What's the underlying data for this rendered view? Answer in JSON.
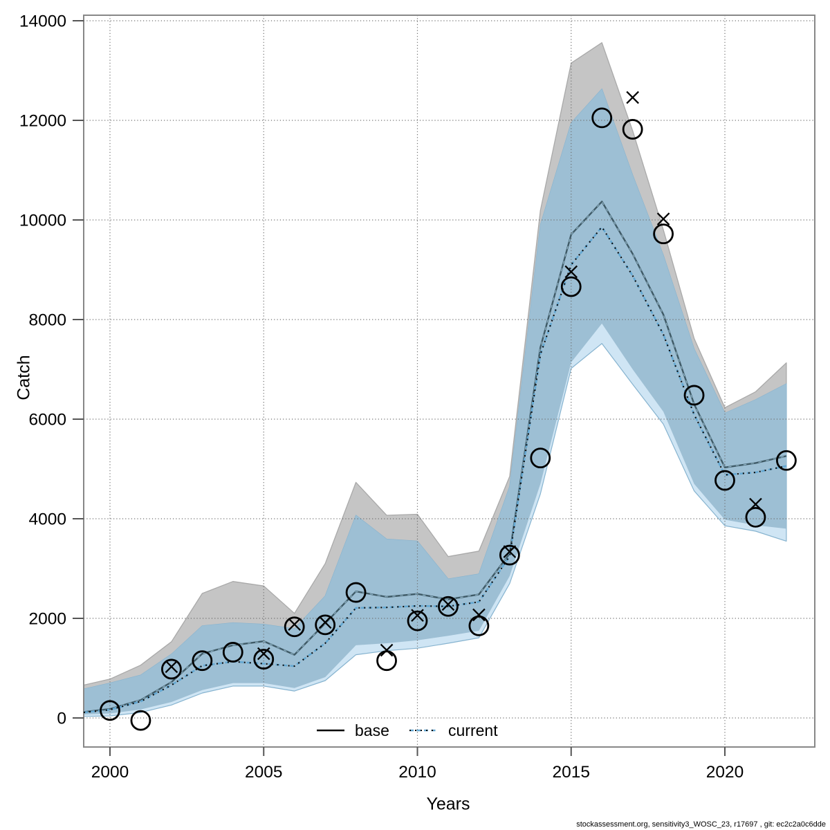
{
  "axes": {
    "x_label": "Years",
    "y_label": "Catch",
    "x_ticks": [
      2000,
      2005,
      2010,
      2015,
      2020
    ],
    "y_ticks": [
      0,
      2000,
      4000,
      6000,
      8000,
      10000,
      12000,
      14000
    ]
  },
  "legend": {
    "items": [
      {
        "label": "base",
        "line": "solid",
        "color": "#000000"
      },
      {
        "label": "current",
        "line": "dotted",
        "color": "#64a8d2"
      }
    ]
  },
  "footer": {
    "credit": "stockassessment.org, sensitivity3_WOSC_23, r17697 , git: ec2c2a0c6dde"
  },
  "chart_data": {
    "type": "line",
    "xlabel": "Years",
    "ylabel": "Catch",
    "xlim": [
      1999.15,
      2022.9
    ],
    "ylim": [
      0,
      14000
    ],
    "grid": true,
    "legend_position": "bottom-center-inside",
    "x": [
      2000,
      2001,
      2002,
      2003,
      2004,
      2005,
      2006,
      2007,
      2008,
      2009,
      2010,
      2011,
      2012,
      2013,
      2014,
      2015,
      2016,
      2017,
      2018,
      2019,
      2020,
      2021,
      2022
    ],
    "series": [
      {
        "name": "base",
        "style": "solid",
        "color": "#3f5a66",
        "values": [
          180,
          360,
          720,
          1290,
          1460,
          1540,
          1270,
          1900,
          2540,
          2430,
          2490,
          2380,
          2480,
          3300,
          7440,
          9710,
          10370,
          9320,
          8100,
          6300,
          5030,
          5120,
          5260
        ]
      },
      {
        "name": "current",
        "style": "dotted",
        "color": "#2e7cb5",
        "values": [
          165,
          330,
          660,
          1050,
          1130,
          1090,
          1040,
          1500,
          2210,
          2220,
          2250,
          2240,
          2330,
          3250,
          7300,
          9100,
          9860,
          8880,
          7700,
          6090,
          4880,
          4930,
          5060
        ]
      },
      {
        "name": "observed_circles",
        "marker": "circle",
        "values": [
          150,
          -50,
          980,
          1150,
          1320,
          1180,
          1830,
          1870,
          2520,
          1150,
          1950,
          2240,
          1850,
          3270,
          5220,
          8660,
          12050,
          11820,
          9720,
          6480,
          4770,
          4030,
          5170
        ]
      },
      {
        "name": "observed_crosses",
        "marker": "x",
        "values": [
          null,
          null,
          1030,
          null,
          null,
          1290,
          1880,
          1920,
          null,
          1360,
          2060,
          2280,
          2070,
          3340,
          null,
          8960,
          null,
          12460,
          10020,
          null,
          null,
          4290,
          null
        ]
      }
    ],
    "bands": [
      {
        "name": "base_band",
        "fill": "#c5c5c5",
        "stroke": "#a9a9a9",
        "upper": [
          780,
          1060,
          1530,
          2500,
          2740,
          2650,
          2100,
          3100,
          4730,
          4070,
          4090,
          3240,
          3350,
          4850,
          10190,
          13150,
          13560,
          11790,
          9800,
          7620,
          6230,
          6550,
          7130
        ],
        "lower": [
          90,
          170,
          320,
          560,
          700,
          700,
          600,
          820,
          1460,
          1500,
          1560,
          1650,
          1750,
          2850,
          4700,
          7140,
          7920,
          7000,
          6150,
          4700,
          3980,
          3870,
          3800
        ]
      },
      {
        "name": "current_band",
        "fill": "#cfe5f4",
        "overlap_fill": "#9dbfd4",
        "stroke": "#86b3cf",
        "upper": [
          700,
          860,
          1280,
          1850,
          1910,
          1880,
          1790,
          2450,
          4070,
          3590,
          3550,
          2790,
          2890,
          4650,
          9900,
          11950,
          12630,
          10900,
          9290,
          7410,
          6120,
          6390,
          6710
        ],
        "lower": [
          40,
          110,
          260,
          500,
          640,
          640,
          540,
          750,
          1270,
          1350,
          1400,
          1500,
          1610,
          2700,
          4500,
          7020,
          7520,
          6700,
          5900,
          4560,
          3860,
          3750,
          3550
        ]
      }
    ],
    "left_edge_clip": {
      "x_year": 1999.15,
      "base": 120,
      "current": 110,
      "base_band": [
        70,
        660
      ],
      "current_band": [
        30,
        580
      ]
    }
  }
}
